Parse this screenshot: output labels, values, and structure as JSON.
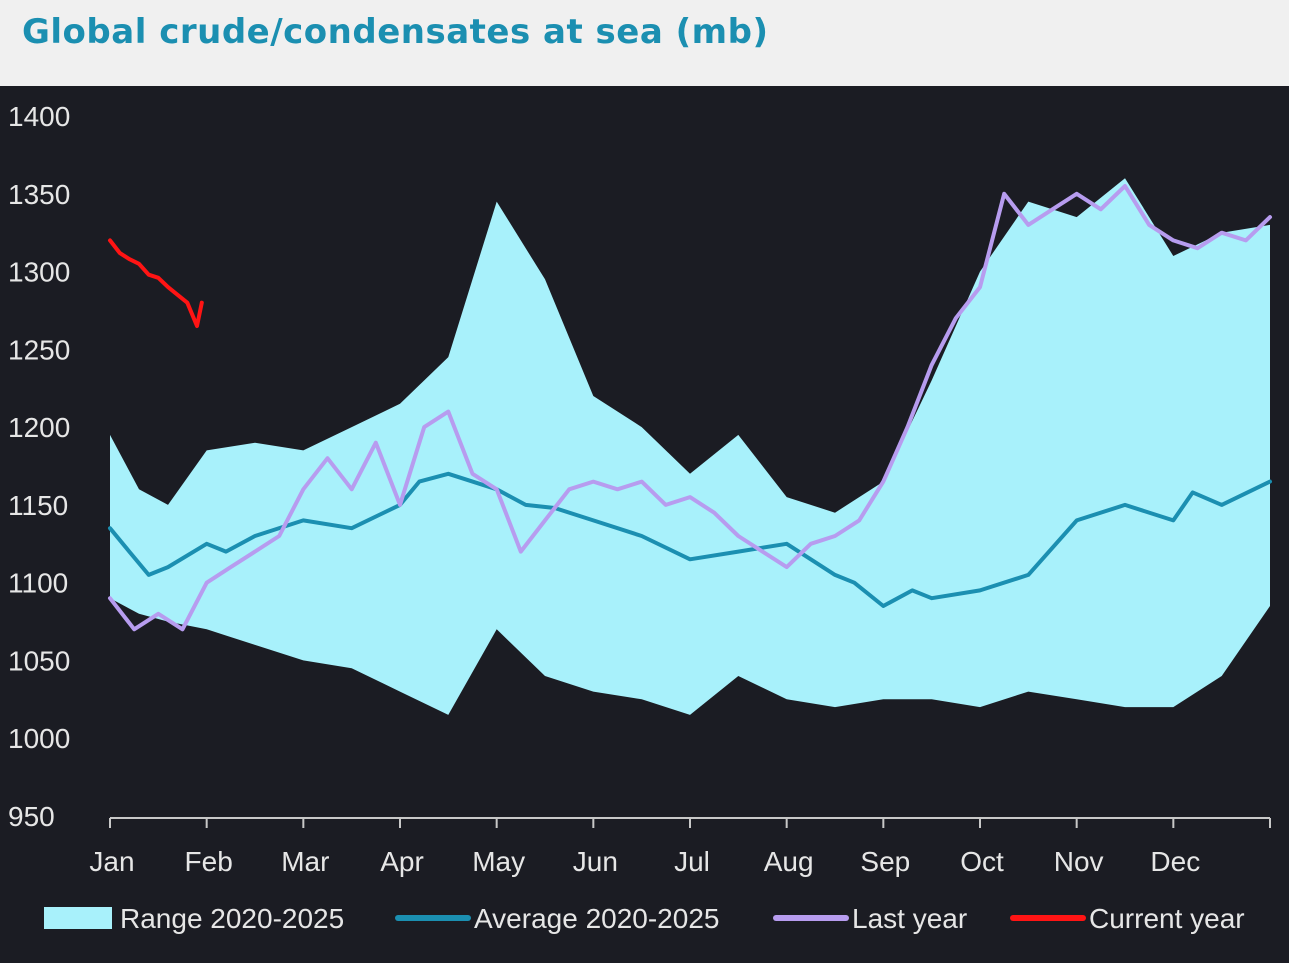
{
  "title": "Global crude/condensates at sea (mb)",
  "chart_data": {
    "type": "area",
    "title": "Global crude/condensates at sea (mb)",
    "ylim": [
      950,
      1400
    ],
    "yticks": [
      950,
      1000,
      1050,
      1100,
      1150,
      1200,
      1250,
      1300,
      1350,
      1400
    ],
    "months": [
      "Jan",
      "Feb",
      "Mar",
      "Apr",
      "May",
      "Jun",
      "Jul",
      "Aug",
      "Sep",
      "Oct",
      "Nov",
      "Dec"
    ],
    "legend_position": "bottom",
    "colors": {
      "background": "#1b1c23",
      "range": "#a8f1fb",
      "average": "#1b8fb1",
      "last_year": "#b79cef",
      "current_year": "#ff1414",
      "axis": "#c8c8c8",
      "tick_text": "#e6e6e6"
    },
    "range": {
      "name": "Range 2020-2025",
      "x": [
        0,
        0.3,
        0.6,
        1,
        1.5,
        2,
        2.5,
        3,
        3.5,
        4,
        4.5,
        5,
        5.5,
        6,
        6.5,
        7,
        7.5,
        8,
        8.5,
        9,
        9.5,
        10,
        10.5,
        11,
        11.5,
        12
      ],
      "upper": [
        1195,
        1160,
        1150,
        1185,
        1190,
        1185,
        1200,
        1215,
        1245,
        1345,
        1295,
        1220,
        1200,
        1170,
        1195,
        1155,
        1145,
        1165,
        1230,
        1300,
        1345,
        1335,
        1360,
        1310,
        1325,
        1330
      ],
      "lower": [
        1090,
        1080,
        1075,
        1070,
        1060,
        1050,
        1045,
        1030,
        1015,
        1070,
        1040,
        1030,
        1025,
        1015,
        1040,
        1025,
        1020,
        1025,
        1025,
        1020,
        1030,
        1025,
        1020,
        1020,
        1040,
        1085
      ]
    },
    "series": [
      {
        "name": "Average 2020-2025",
        "x": [
          0,
          0.2,
          0.4,
          0.6,
          1,
          1.2,
          1.5,
          2,
          2.5,
          3,
          3.2,
          3.5,
          4,
          4.3,
          4.6,
          5,
          5.5,
          6,
          6.5,
          7,
          7.5,
          7.7,
          8,
          8.3,
          8.5,
          9,
          9.5,
          10,
          10.5,
          11,
          11.2,
          11.5,
          12
        ],
        "values": [
          1135,
          1120,
          1105,
          1110,
          1125,
          1120,
          1130,
          1140,
          1135,
          1150,
          1165,
          1170,
          1160,
          1150,
          1148,
          1140,
          1130,
          1115,
          1120,
          1125,
          1105,
          1100,
          1085,
          1095,
          1090,
          1095,
          1105,
          1140,
          1150,
          1140,
          1158,
          1150,
          1165
        ]
      },
      {
        "name": "Last year",
        "x": [
          0,
          0.25,
          0.5,
          0.75,
          1,
          1.25,
          1.5,
          1.75,
          2,
          2.25,
          2.5,
          2.75,
          3,
          3.25,
          3.5,
          3.75,
          4,
          4.25,
          4.5,
          4.75,
          5,
          5.25,
          5.5,
          5.75,
          6,
          6.25,
          6.5,
          6.75,
          7,
          7.25,
          7.5,
          7.75,
          8,
          8.25,
          8.5,
          8.75,
          9,
          9.25,
          9.5,
          9.75,
          10,
          10.25,
          10.5,
          10.75,
          11,
          11.25,
          11.5,
          11.75,
          12
        ],
        "values": [
          1090,
          1070,
          1080,
          1070,
          1100,
          1110,
          1120,
          1130,
          1160,
          1180,
          1160,
          1190,
          1150,
          1200,
          1210,
          1170,
          1160,
          1120,
          1140,
          1160,
          1165,
          1160,
          1165,
          1150,
          1155,
          1145,
          1130,
          1120,
          1110,
          1125,
          1130,
          1140,
          1165,
          1200,
          1240,
          1270,
          1290,
          1350,
          1330,
          1340,
          1350,
          1340,
          1355,
          1330,
          1320,
          1315,
          1325,
          1320,
          1335
        ]
      },
      {
        "name": "Current year",
        "x": [
          0,
          0.1,
          0.2,
          0.3,
          0.4,
          0.5,
          0.6,
          0.7,
          0.8,
          0.9,
          0.95
        ],
        "values": [
          1320,
          1312,
          1308,
          1305,
          1298,
          1296,
          1290,
          1285,
          1280,
          1265,
          1280
        ]
      }
    ]
  }
}
